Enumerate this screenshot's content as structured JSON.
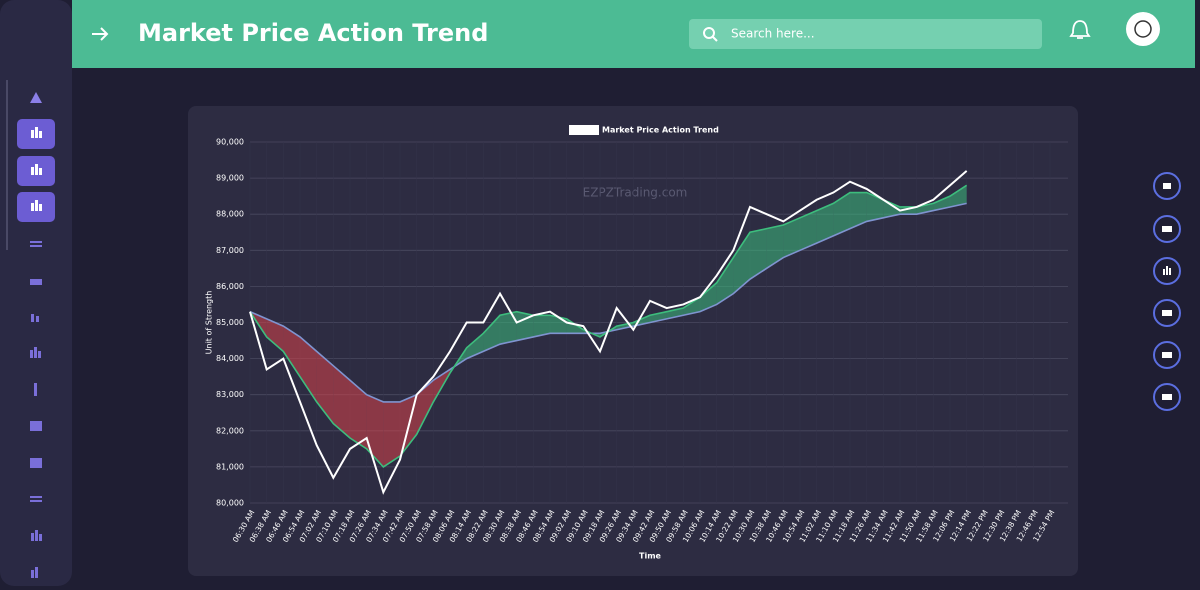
{
  "header": {
    "title": "Market Price Action Trend",
    "search_placeholder": "Search here..."
  },
  "chart_data": {
    "type": "line",
    "legend": "Market Price Action Trend",
    "watermark": "EZPZTrading.com",
    "y_label": "Unit of Strength",
    "x_label": "Time",
    "categories": [
      "06:30 AM",
      "06:38 AM",
      "06:46 AM",
      "06:54 AM",
      "07:02 AM",
      "07:10 AM",
      "07:18 AM",
      "07:26 AM",
      "07:34 AM",
      "07:42 AM",
      "07:50 AM",
      "07:58 AM",
      "08:06 AM",
      "08:14 AM",
      "08:22 AM",
      "08:30 AM",
      "08:38 AM",
      "08:46 AM",
      "08:54 AM",
      "09:02 AM",
      "09:10 AM",
      "09:18 AM",
      "09:26 AM",
      "09:34 AM",
      "09:42 AM",
      "09:50 AM",
      "09:58 AM",
      "10:06 AM",
      "10:14 AM",
      "10:22 AM",
      "10:30 AM",
      "10:38 AM",
      "10:46 AM",
      "10:54 AM",
      "11:02 AM",
      "11:10 AM",
      "11:18 AM",
      "11:26 AM",
      "11:34 AM",
      "11:42 AM",
      "11:50 AM",
      "11:58 AM",
      "12:06 PM",
      "12:14 PM",
      "12:22 PM",
      "12:30 PM",
      "12:38 PM",
      "12:46 PM",
      "12:54 PM"
    ],
    "series": [
      {
        "name": "Market Price Action Trend",
        "color": "#ffffff",
        "values": [
          85300,
          83700,
          84000,
          82800,
          81600,
          80700,
          81500,
          81800,
          80300,
          81200,
          83000,
          83500,
          84200,
          85000,
          85000,
          85800,
          85000,
          85200,
          85300,
          85000,
          84900,
          84200,
          85400,
          84800,
          85600,
          85400,
          85500,
          85700,
          86300,
          87000,
          88200,
          88000,
          87800,
          88100,
          88400,
          88600,
          88900,
          88700,
          88400,
          88100,
          88200,
          88400,
          88800,
          89200,
          null,
          null,
          null,
          null,
          null
        ]
      },
      {
        "color": "#3dbd7d",
        "values": [
          85300,
          84600,
          84200,
          83500,
          82800,
          82200,
          81800,
          81500,
          81000,
          81300,
          81900,
          82800,
          83600,
          84300,
          84700,
          85200,
          85300,
          85200,
          85200,
          85100,
          84800,
          84600,
          84900,
          85000,
          85200,
          85300,
          85400,
          85700,
          86100,
          86800,
          87500,
          87600,
          87700,
          87900,
          88100,
          88300,
          88600,
          88600,
          88400,
          88200,
          88200,
          88300,
          88500,
          88800,
          null,
          null,
          null,
          null,
          null
        ]
      },
      {
        "color": "#7f94d0",
        "values": [
          85300,
          85100,
          84900,
          84600,
          84200,
          83800,
          83400,
          83000,
          82800,
          82800,
          83000,
          83400,
          83700,
          84000,
          84200,
          84400,
          84500,
          84600,
          84700,
          84700,
          84700,
          84700,
          84800,
          84900,
          85000,
          85100,
          85200,
          85300,
          85500,
          85800,
          86200,
          86500,
          86800,
          87000,
          87200,
          87400,
          87600,
          87800,
          87900,
          88000,
          88000,
          88100,
          88200,
          88300,
          null,
          null,
          null,
          null,
          null
        ]
      }
    ],
    "band_colors": {
      "up": "#3dbd7d",
      "down": "#d9434a"
    },
    "ylim": [
      80000,
      90000
    ],
    "yticks": [
      {
        "value": 80000,
        "label": "80,000"
      },
      {
        "value": 81000,
        "label": "81,000"
      },
      {
        "value": 82000,
        "label": "82,000"
      },
      {
        "value": 83000,
        "label": "83,000"
      },
      {
        "value": 84000,
        "label": "84,000"
      },
      {
        "value": 85000,
        "label": "85,000"
      },
      {
        "value": 86000,
        "label": "86,000"
      },
      {
        "value": 87000,
        "label": "87,000"
      },
      {
        "value": 88000,
        "label": "88,000"
      },
      {
        "value": 89000,
        "label": "89,000"
      },
      {
        "value": 90000,
        "label": "90,000"
      }
    ],
    "grid": true
  }
}
